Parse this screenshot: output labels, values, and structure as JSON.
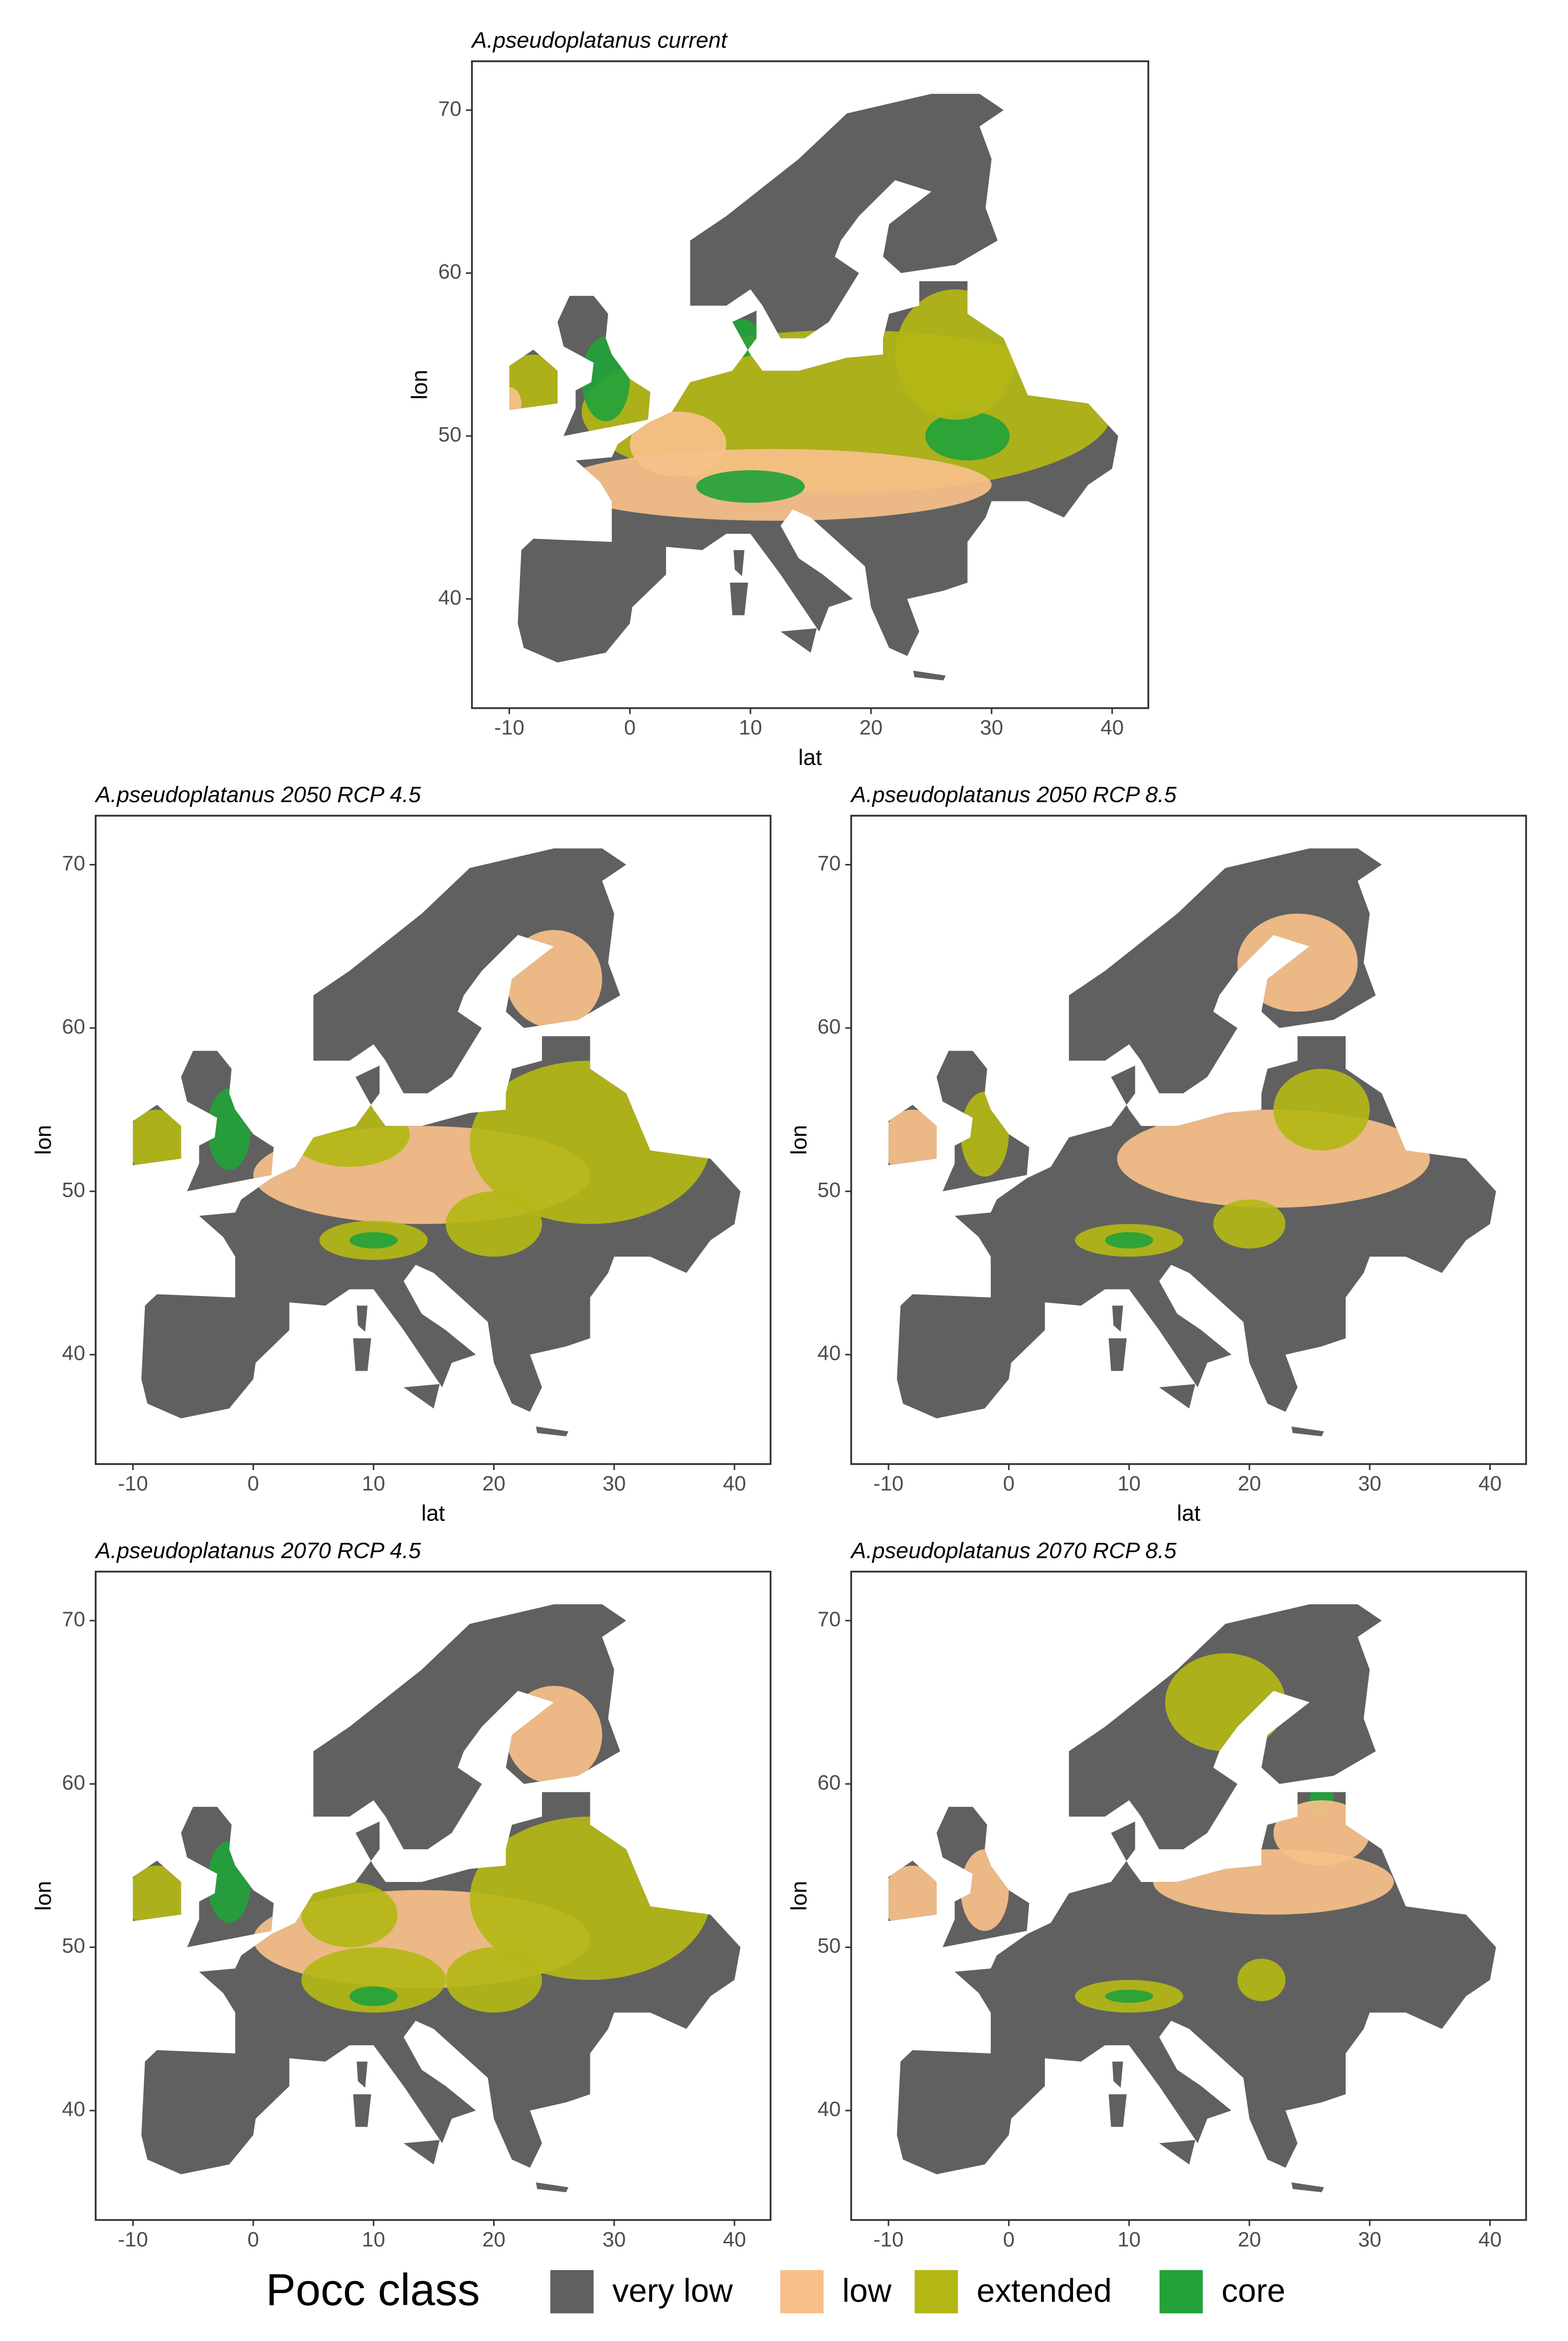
{
  "chart_data": [
    {
      "type": "map",
      "title": "A.pseudoplatanus current",
      "xlabel": "lat",
      "ylabel": "lon",
      "xlim": [
        -13.1,
        43
      ],
      "ylim": [
        33.3,
        73
      ],
      "xticks": [
        -10,
        0,
        10,
        20,
        30,
        40
      ],
      "yticks": [
        40,
        50,
        60,
        70
      ]
    },
    {
      "type": "map",
      "title": "A.pseudoplatanus 2050 RCP 4.5",
      "xlabel": "lat",
      "ylabel": "lon",
      "xlim": [
        -13.1,
        43
      ],
      "ylim": [
        33.3,
        73
      ],
      "xticks": [
        -10,
        0,
        10,
        20,
        30,
        40
      ],
      "yticks": [
        40,
        50,
        60,
        70
      ]
    },
    {
      "type": "map",
      "title": "A.pseudoplatanus 2050 RCP 8.5",
      "xlabel": "lat",
      "ylabel": "lon",
      "xlim": [
        -13.1,
        43
      ],
      "ylim": [
        33.3,
        73
      ],
      "xticks": [
        -10,
        0,
        10,
        20,
        30,
        40
      ],
      "yticks": [
        40,
        50,
        60,
        70
      ]
    },
    {
      "type": "map",
      "title": "A.pseudoplatanus 2070 RCP 4.5",
      "ylabel": "lon",
      "xlim": [
        -13.1,
        43
      ],
      "ylim": [
        33.3,
        73
      ],
      "xticks": [
        -10,
        0,
        10,
        20,
        30,
        40
      ],
      "yticks": [
        40,
        50,
        60,
        70
      ]
    },
    {
      "type": "map",
      "title": "A.pseudoplatanus 2070 RCP 8.5",
      "ylabel": "lon",
      "xlim": [
        -13.1,
        43
      ],
      "ylim": [
        33.3,
        73
      ],
      "xticks": [
        -10,
        0,
        10,
        20,
        30,
        40
      ],
      "yticks": [
        40,
        50,
        60,
        70
      ]
    }
  ],
  "legend": {
    "title": "Pocc class",
    "classes": [
      {
        "name": "very low",
        "color": "#606060"
      },
      {
        "name": "low",
        "color": "#f7c08a"
      },
      {
        "name": "extended",
        "color": "#b3b716"
      },
      {
        "name": "core",
        "color": "#23a23a"
      }
    ]
  }
}
